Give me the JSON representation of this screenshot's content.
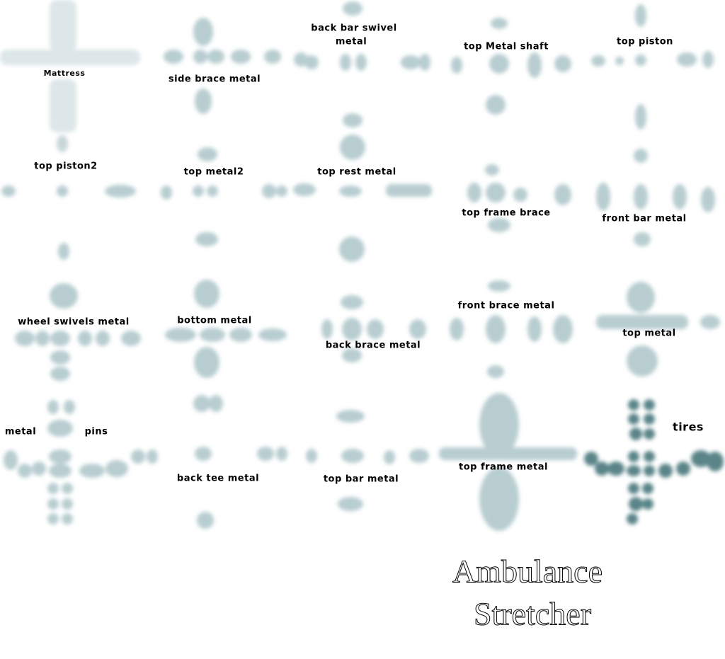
{
  "labels": [
    "Mattress",
    "side brace metal",
    "back bar swivel",
    "metal",
    "top Metal shaft",
    "top piston",
    "top piston2",
    "top metal2",
    "top rest metal",
    "top frame brace",
    "front bar metal",
    "wheel swivels metal",
    "bottom metal",
    "back brace metal",
    "front brace metal",
    "top metal",
    "metal",
    "pins",
    "back tee metal",
    "top bar metal",
    "top frame metal",
    "tires"
  ],
  "title": [
    "Ambulance",
    "Stretcher"
  ]
}
